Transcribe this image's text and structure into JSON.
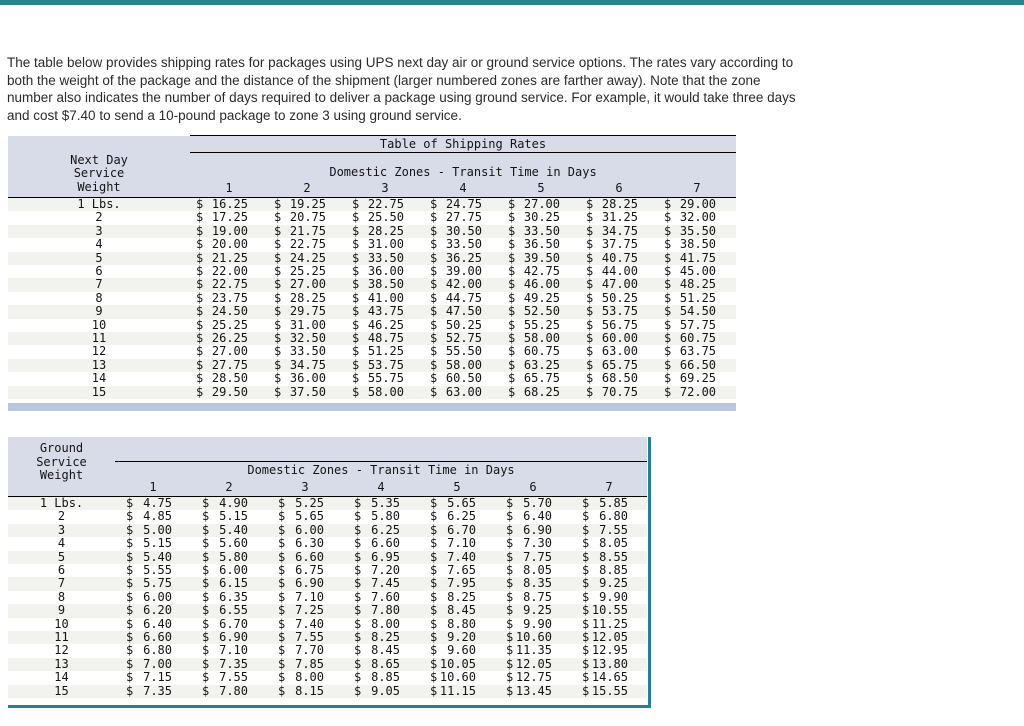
{
  "intro": {
    "lines": [
      "The table below provides shipping rates for packages using UPS next day air or ground service options. The rates vary according to",
      "both the weight of the package and the distance of the shipment (larger numbered zones are farther away). Note that the zone",
      "number also indicates the number of days required to deliver a package using ground service. For example, it would take three days",
      "and cost $7.40 to send a 10-pound package to zone 3 using ground service."
    ]
  },
  "colors": {
    "accent_teal": "#2e7f8e",
    "header_bg": "#d8dbe8",
    "row_stripe": "#f2f2ee",
    "bottom_strip": "#bac6e0"
  },
  "next_day": {
    "title": "Table of Shipping Rates",
    "weight_label_lines": [
      "Next Day",
      "Service",
      "Weight"
    ],
    "zones_heading": "Domestic Zones - Transit Time in Days",
    "zones": [
      "1",
      "2",
      "3",
      "4",
      "5",
      "6",
      "7"
    ],
    "currency": "$",
    "rows": [
      {
        "weight": "1 Lbs.",
        "rates": [
          "16.25",
          "19.25",
          "22.75",
          "24.75",
          "27.00",
          "28.25",
          "29.00"
        ]
      },
      {
        "weight": "2",
        "rates": [
          "17.25",
          "20.75",
          "25.50",
          "27.75",
          "30.25",
          "31.25",
          "32.00"
        ]
      },
      {
        "weight": "3",
        "rates": [
          "19.00",
          "21.75",
          "28.25",
          "30.50",
          "33.50",
          "34.75",
          "35.50"
        ]
      },
      {
        "weight": "4",
        "rates": [
          "20.00",
          "22.75",
          "31.00",
          "33.50",
          "36.50",
          "37.75",
          "38.50"
        ]
      },
      {
        "weight": "5",
        "rates": [
          "21.25",
          "24.25",
          "33.50",
          "36.25",
          "39.50",
          "40.75",
          "41.75"
        ]
      },
      {
        "weight": "6",
        "rates": [
          "22.00",
          "25.25",
          "36.00",
          "39.00",
          "42.75",
          "44.00",
          "45.00"
        ]
      },
      {
        "weight": "7",
        "rates": [
          "22.75",
          "27.00",
          "38.50",
          "42.00",
          "46.00",
          "47.00",
          "48.25"
        ]
      },
      {
        "weight": "8",
        "rates": [
          "23.75",
          "28.25",
          "41.00",
          "44.75",
          "49.25",
          "50.25",
          "51.25"
        ]
      },
      {
        "weight": "9",
        "rates": [
          "24.50",
          "29.75",
          "43.75",
          "47.50",
          "52.50",
          "53.75",
          "54.50"
        ]
      },
      {
        "weight": "10",
        "rates": [
          "25.25",
          "31.00",
          "46.25",
          "50.25",
          "55.25",
          "56.75",
          "57.75"
        ]
      },
      {
        "weight": "11",
        "rates": [
          "26.25",
          "32.50",
          "48.75",
          "52.75",
          "58.00",
          "60.00",
          "60.75"
        ]
      },
      {
        "weight": "12",
        "rates": [
          "27.00",
          "33.50",
          "51.25",
          "55.50",
          "60.75",
          "63.00",
          "63.75"
        ]
      },
      {
        "weight": "13",
        "rates": [
          "27.75",
          "34.75",
          "53.75",
          "58.00",
          "63.25",
          "65.75",
          "66.50"
        ]
      },
      {
        "weight": "14",
        "rates": [
          "28.50",
          "36.00",
          "55.75",
          "60.50",
          "65.75",
          "68.50",
          "69.25"
        ]
      },
      {
        "weight": "15",
        "rates": [
          "29.50",
          "37.50",
          "58.00",
          "63.00",
          "68.25",
          "70.75",
          "72.00"
        ]
      }
    ]
  },
  "ground": {
    "weight_label_lines": [
      "Ground",
      "Service",
      "Weight"
    ],
    "zones_heading": "Domestic Zones - Transit Time in Days",
    "zones": [
      "1",
      "2",
      "3",
      "4",
      "5",
      "6",
      "7"
    ],
    "currency": "$",
    "rows": [
      {
        "weight": "1 Lbs.",
        "rates": [
          "4.75",
          "4.90",
          "5.25",
          "5.35",
          "5.65",
          "5.70",
          "5.85"
        ]
      },
      {
        "weight": "2",
        "rates": [
          "4.85",
          "5.15",
          "5.65",
          "5.80",
          "6.25",
          "6.40",
          "6.80"
        ]
      },
      {
        "weight": "3",
        "rates": [
          "5.00",
          "5.40",
          "6.00",
          "6.25",
          "6.70",
          "6.90",
          "7.55"
        ]
      },
      {
        "weight": "4",
        "rates": [
          "5.15",
          "5.60",
          "6.30",
          "6.60",
          "7.10",
          "7.30",
          "8.05"
        ]
      },
      {
        "weight": "5",
        "rates": [
          "5.40",
          "5.80",
          "6.60",
          "6.95",
          "7.40",
          "7.75",
          "8.55"
        ]
      },
      {
        "weight": "6",
        "rates": [
          "5.55",
          "6.00",
          "6.75",
          "7.20",
          "7.65",
          "8.05",
          "8.85"
        ]
      },
      {
        "weight": "7",
        "rates": [
          "5.75",
          "6.15",
          "6.90",
          "7.45",
          "7.95",
          "8.35",
          "9.25"
        ]
      },
      {
        "weight": "8",
        "rates": [
          "6.00",
          "6.35",
          "7.10",
          "7.60",
          "8.25",
          "8.75",
          "9.90"
        ]
      },
      {
        "weight": "9",
        "rates": [
          "6.20",
          "6.55",
          "7.25",
          "7.80",
          "8.45",
          "9.25",
          "10.55"
        ]
      },
      {
        "weight": "10",
        "rates": [
          "6.40",
          "6.70",
          "7.40",
          "8.00",
          "8.80",
          "9.90",
          "11.25"
        ]
      },
      {
        "weight": "11",
        "rates": [
          "6.60",
          "6.90",
          "7.55",
          "8.25",
          "9.20",
          "10.60",
          "12.05"
        ]
      },
      {
        "weight": "12",
        "rates": [
          "6.80",
          "7.10",
          "7.70",
          "8.45",
          "9.60",
          "11.35",
          "12.95"
        ]
      },
      {
        "weight": "13",
        "rates": [
          "7.00",
          "7.35",
          "7.85",
          "8.65",
          "10.05",
          "12.05",
          "13.80"
        ]
      },
      {
        "weight": "14",
        "rates": [
          "7.15",
          "7.55",
          "8.00",
          "8.85",
          "10.60",
          "12.75",
          "14.65"
        ]
      },
      {
        "weight": "15",
        "rates": [
          "7.35",
          "7.80",
          "8.15",
          "9.05",
          "11.15",
          "13.45",
          "15.55"
        ]
      }
    ]
  }
}
